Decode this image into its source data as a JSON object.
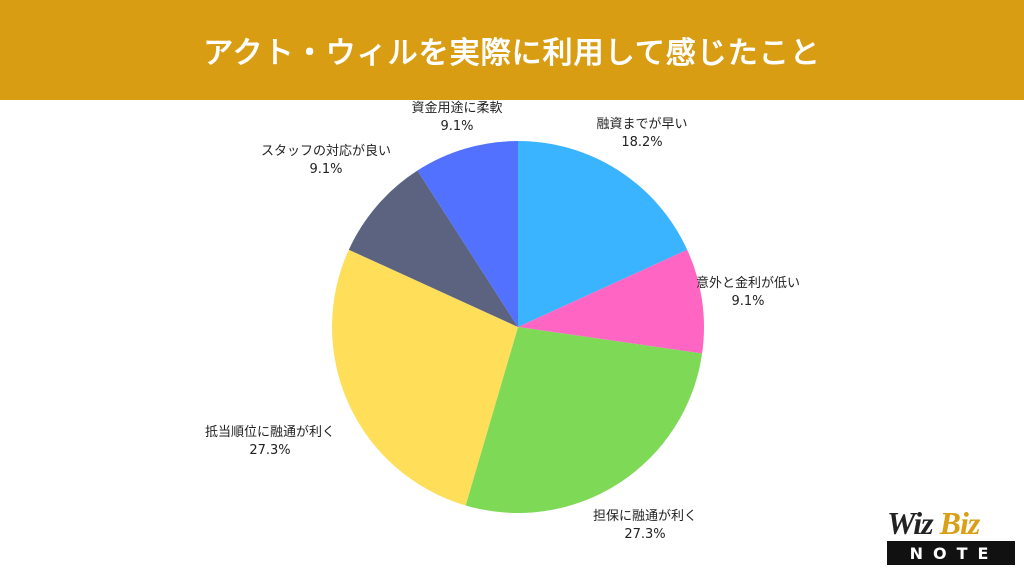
{
  "header": {
    "title": "アクト・ウィルを実際に利用して感じたこと"
  },
  "colors": {
    "header_bg": "#d99d14",
    "slices": [
      "#3ab4ff",
      "#ff66c4",
      "#7ed957",
      "#ffde59",
      "#5b6380",
      "#5271ff"
    ]
  },
  "chart_data": {
    "type": "pie",
    "title": "アクト・ウィルを実際に利用して感じたこと",
    "categories": [
      "融資までが早い",
      "意外と金利が低い",
      "担保に融通が利く",
      "抵当順位に融通が利く",
      "スタッフの対応が良い",
      "資金用途に柔軟"
    ],
    "values": [
      18.2,
      9.1,
      27.3,
      27.3,
      9.1,
      9.1
    ],
    "value_labels": [
      "18.2%",
      "9.1%",
      "27.3%",
      "27.3%",
      "9.1%",
      "9.1%"
    ],
    "start": "12 o'clock, clockwise"
  },
  "logo": {
    "wiz": "Wiz",
    "biz": "Biz",
    "note": "NOTE"
  }
}
